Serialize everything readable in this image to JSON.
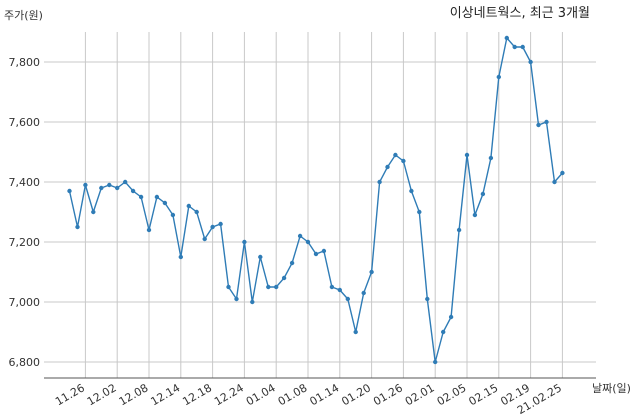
{
  "chart_data": {
    "type": "line",
    "title": "이상네트웍스, 최근 3개월",
    "ylabel": "주가(원)",
    "xlabel": "날짜(일)",
    "ylim": [
      6750,
      7960
    ],
    "yticks": [
      6800,
      7000,
      7200,
      7400,
      7600,
      7800
    ],
    "ytick_labels": [
      "6,800",
      "7,000",
      "7,200",
      "7,400",
      "7,600",
      "7,800"
    ],
    "xtick_labels": [
      {
        "label": "11.26",
        "index": 2
      },
      {
        "label": "12.02",
        "index": 6
      },
      {
        "label": "12.08",
        "index": 10
      },
      {
        "label": "12.14",
        "index": 14
      },
      {
        "label": "12.18",
        "index": 18
      },
      {
        "label": "12.24",
        "index": 22
      },
      {
        "label": "01.04",
        "index": 26
      },
      {
        "label": "01.08",
        "index": 30
      },
      {
        "label": "01.14",
        "index": 34
      },
      {
        "label": "01.20",
        "index": 38
      },
      {
        "label": "01.26",
        "index": 42
      },
      {
        "label": "02.01",
        "index": 46
      },
      {
        "label": "02.05",
        "index": 50
      },
      {
        "label": "02.15",
        "index": 54
      },
      {
        "label": "02.19",
        "index": 58
      },
      {
        "label": "21.02.25",
        "index": 62
      }
    ],
    "grid": true,
    "line_color": "#2f7cb6",
    "series": [
      {
        "values": [
          7370,
          7250,
          7390,
          7300,
          7380,
          7390,
          7380,
          7400,
          7370,
          7350,
          7240,
          7350,
          7330,
          7290,
          7150,
          7320,
          7300,
          7210,
          7250,
          7260,
          7050,
          7010,
          7200,
          7000,
          7150,
          7050,
          7050,
          7080,
          7130,
          7220,
          7200,
          7160,
          7170,
          7050,
          7040,
          7010,
          6900,
          7030,
          7100,
          7400,
          7450,
          7490,
          7470,
          7370,
          7300,
          7010,
          6800,
          6900,
          6950,
          7240,
          7490,
          7290,
          7360,
          7480,
          7750,
          7880,
          7850,
          7850,
          7800,
          7590,
          7600,
          7400,
          7430
        ]
      }
    ]
  }
}
